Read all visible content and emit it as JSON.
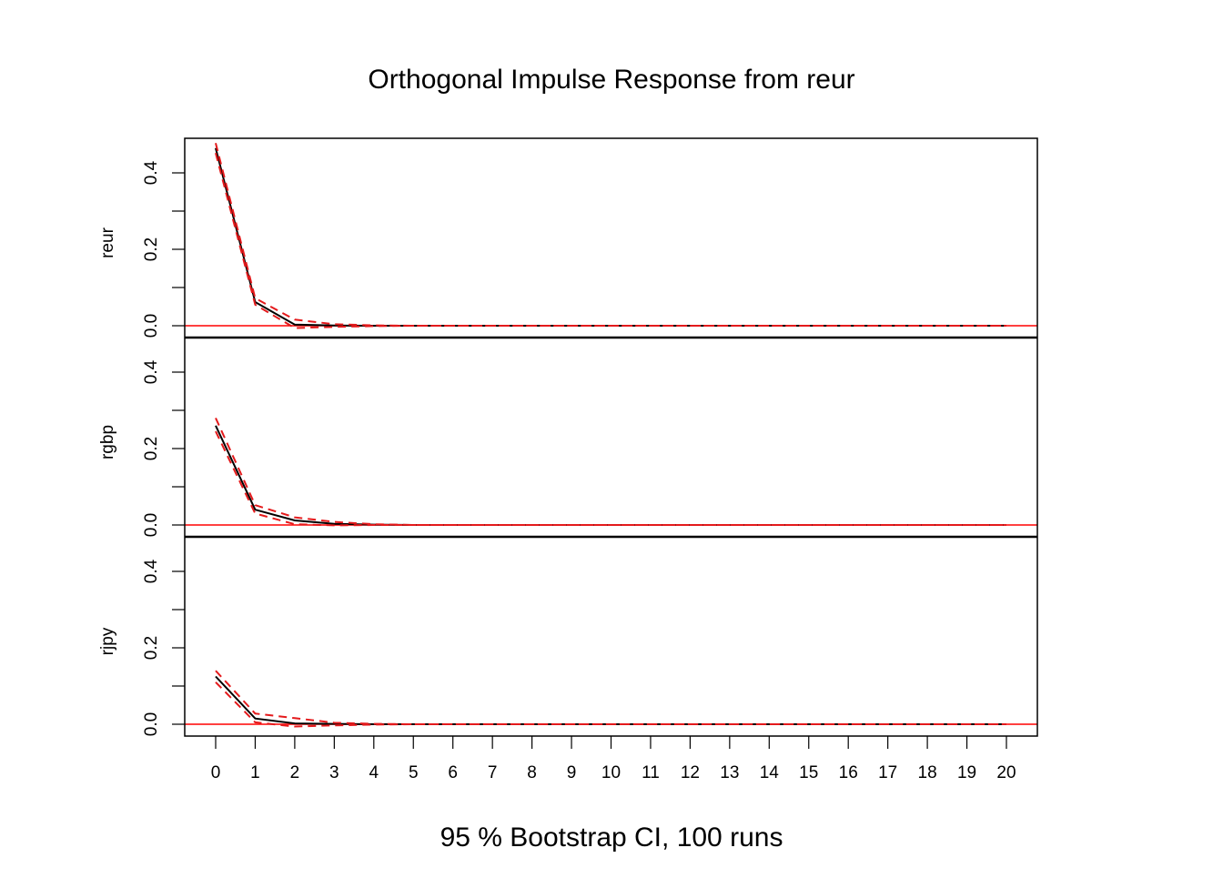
{
  "chart_data": {
    "type": "line",
    "title": "Orthogonal Impulse Response from reur",
    "xlabel": "95 % Bootstrap CI,  100 runs",
    "x": [
      0,
      1,
      2,
      3,
      4,
      5,
      6,
      7,
      8,
      9,
      10,
      11,
      12,
      13,
      14,
      15,
      16,
      17,
      18,
      19,
      20
    ],
    "xlim": [
      0,
      20
    ],
    "ylim": [
      0,
      0.45
    ],
    "y_ticks": [
      "0.0",
      "0.2",
      "0.4"
    ],
    "colors": {
      "response": "#000000",
      "ci": "#e41a1c",
      "zero_line": "#ff0000",
      "frame": "#000000"
    },
    "panels": [
      {
        "name": "reur",
        "series": [
          {
            "name": "",
            "style": "solid",
            "values": [
              0.465,
              0.062,
              0.003,
              0.0005,
              0.0001,
              0,
              0,
              0,
              0,
              0,
              0,
              0,
              0,
              0,
              0,
              0,
              0,
              0,
              0,
              0,
              0
            ]
          },
          {
            "name": "",
            "style": "dashed",
            "values": [
              0.478,
              0.072,
              0.016,
              0.004,
              0.001,
              0,
              0,
              0,
              0,
              0,
              0,
              0,
              0,
              0,
              0,
              0,
              0,
              0,
              0,
              0,
              0
            ]
          },
          {
            "name": "",
            "style": "dashed",
            "values": [
              0.452,
              0.055,
              -0.006,
              -0.003,
              -0.001,
              0,
              0,
              0,
              0,
              0,
              0,
              0,
              0,
              0,
              0,
              0,
              0,
              0,
              0,
              0,
              0
            ]
          }
        ]
      },
      {
        "name": "rgbp",
        "series": [
          {
            "name": "",
            "style": "solid",
            "values": [
              0.26,
              0.04,
              0.012,
              0.003,
              0.001,
              0,
              0,
              0,
              0,
              0,
              0,
              0,
              0,
              0,
              0,
              0,
              0,
              0,
              0,
              0,
              0
            ]
          },
          {
            "name": "",
            "style": "dashed",
            "values": [
              0.28,
              0.052,
              0.02,
              0.008,
              0.002,
              0,
              0,
              0,
              0,
              0,
              0,
              0,
              0,
              0,
              0,
              0,
              0,
              0,
              0,
              0,
              0
            ]
          },
          {
            "name": "",
            "style": "dashed",
            "values": [
              0.245,
              0.03,
              0.002,
              -0.001,
              0,
              0,
              0,
              0,
              0,
              0,
              0,
              0,
              0,
              0,
              0,
              0,
              0,
              0,
              0,
              0,
              0
            ]
          }
        ]
      },
      {
        "name": "rjpy",
        "series": [
          {
            "name": "",
            "style": "solid",
            "values": [
              0.125,
              0.015,
              0.002,
              0.001,
              0,
              0,
              0,
              0,
              0,
              0,
              0,
              0,
              0,
              0,
              0,
              0,
              0,
              0,
              0,
              0,
              0
            ]
          },
          {
            "name": "",
            "style": "dashed",
            "values": [
              0.14,
              0.028,
              0.016,
              0.004,
              0.001,
              0,
              0,
              0,
              0,
              0,
              0,
              0,
              0,
              0,
              0,
              0,
              0,
              0,
              0,
              0,
              0
            ]
          },
          {
            "name": "",
            "style": "dashed",
            "values": [
              0.11,
              0.005,
              -0.006,
              -0.003,
              -0.001,
              0,
              0,
              0,
              0,
              0,
              0,
              0,
              0,
              0,
              0,
              0,
              0,
              0,
              0,
              0,
              0
            ]
          }
        ]
      }
    ]
  }
}
